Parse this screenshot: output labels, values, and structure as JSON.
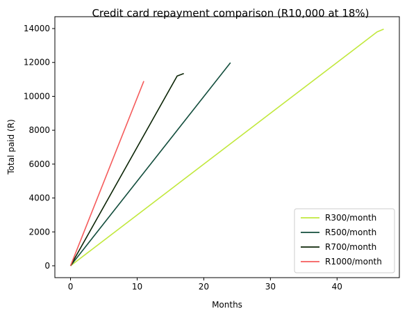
{
  "chart_data": {
    "type": "line",
    "title": "Credit card repayment comparison (R10,000 at 18%)",
    "xlabel": "Months",
    "ylabel": "Total paid (R)",
    "xlim": [
      -2.35,
      49.35
    ],
    "ylim": [
      -700,
      14700
    ],
    "xticks": [
      0,
      10,
      20,
      30,
      40
    ],
    "yticks": [
      0,
      2000,
      4000,
      6000,
      8000,
      10000,
      12000,
      14000
    ],
    "grid": false,
    "legend_position": "lower-right",
    "series": [
      {
        "name": "R300/month",
        "color": "#c1e83c",
        "x": [
          0,
          46,
          47
        ],
        "y": [
          0,
          13800,
          13964
        ]
      },
      {
        "name": "R500/month",
        "color": "#124d3c",
        "x": [
          0,
          24
        ],
        "y": [
          0,
          11985
        ]
      },
      {
        "name": "R700/month",
        "color": "#0b2506",
        "x": [
          0,
          16,
          17
        ],
        "y": [
          0,
          11200,
          11350
        ]
      },
      {
        "name": "R1000/month",
        "color": "#f55b5b",
        "x": [
          0,
          11
        ],
        "y": [
          0,
          10900
        ]
      }
    ]
  }
}
